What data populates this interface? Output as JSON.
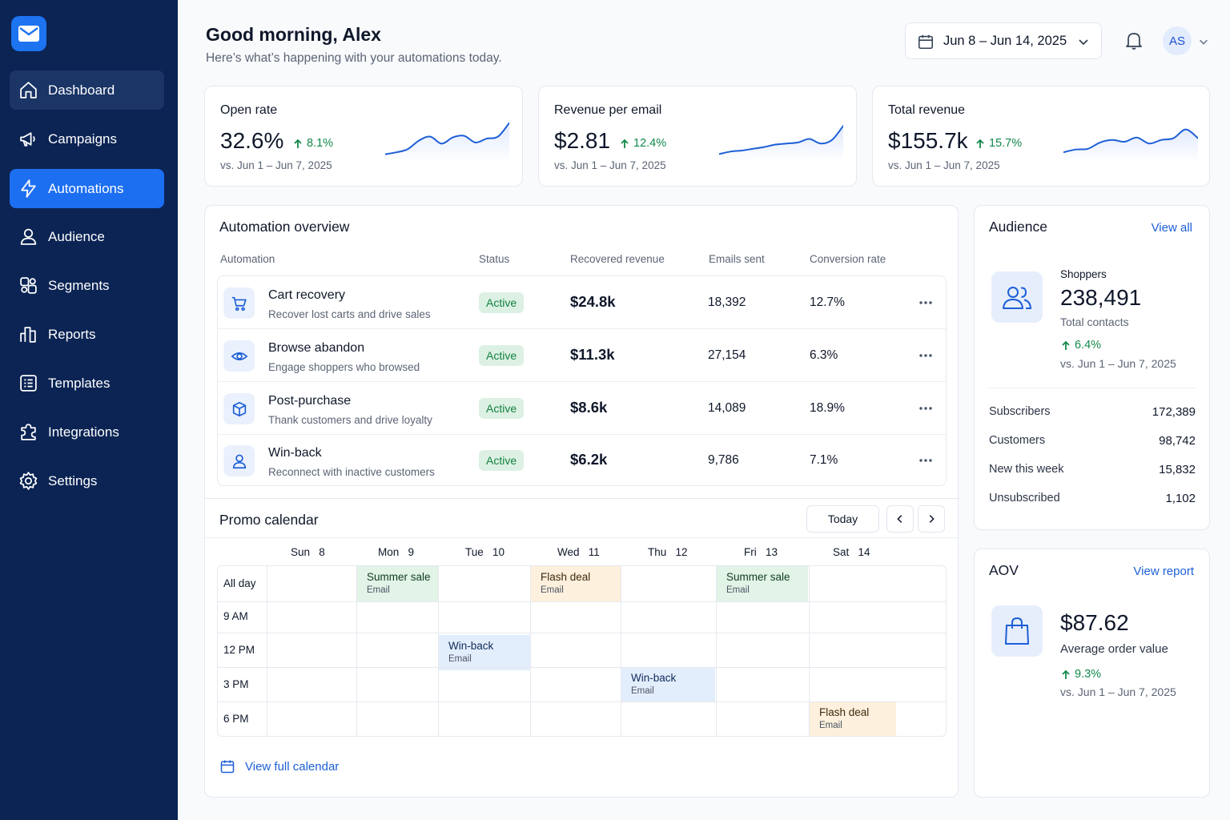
{
  "sidebar": {
    "logo_icon": "mail-icon",
    "items": [
      {
        "label": "Dashboard",
        "icon": "home-icon"
      },
      {
        "label": "Campaigns",
        "icon": "megaphone-icon"
      },
      {
        "label": "Automations",
        "icon": "lightning-icon"
      },
      {
        "label": "Audience",
        "icon": "user-icon"
      },
      {
        "label": "Segments",
        "icon": "segments-icon"
      },
      {
        "label": "Reports",
        "icon": "bar-chart-icon"
      },
      {
        "label": "Templates",
        "icon": "template-icon"
      },
      {
        "label": "Integrations",
        "icon": "puzzle-icon"
      },
      {
        "label": "Settings",
        "icon": "gear-icon"
      }
    ],
    "active": "Automations"
  },
  "header": {
    "greeting": "Good morning, Alex",
    "subtitle": "Here’s what’s happening with your automations today.",
    "date_range": "Jun 8 – Jun 14, 2025",
    "avatar_initials": "AS"
  },
  "metrics": [
    {
      "title": "Open rate",
      "value": "32.6%",
      "delta": "8.1%",
      "compare": "vs. Jun 1 – Jun 7, 2025",
      "trend": [
        0.15,
        0.2,
        0.28,
        0.5,
        0.6,
        0.42,
        0.58,
        0.62,
        0.45,
        0.55,
        0.6,
        0.95
      ]
    },
    {
      "title": "Revenue per email",
      "value": "$2.81",
      "delta": "12.4%",
      "compare": "vs. Jun 1 – Jun 7, 2025",
      "trend": [
        0.15,
        0.22,
        0.25,
        0.3,
        0.35,
        0.42,
        0.45,
        0.48,
        0.58,
        0.45,
        0.55,
        0.95
      ]
    },
    {
      "title": "Total revenue",
      "value": "$155.7k",
      "delta": "15.7%",
      "compare": "vs. Jun 1 – Jun 7, 2025",
      "trend": [
        0.2,
        0.28,
        0.3,
        0.48,
        0.55,
        0.5,
        0.62,
        0.45,
        0.55,
        0.6,
        0.85,
        0.6
      ]
    }
  ],
  "automation_overview": {
    "title": "Automation overview",
    "columns": [
      "Automation",
      "Status",
      "Recovered revenue",
      "Emails sent",
      "Conversion rate"
    ],
    "rows": [
      {
        "name": "Cart recovery",
        "desc": "Recover lost carts and drive sales",
        "status": "Active",
        "revenue": "$24.8k",
        "sent": "18,392",
        "conversion": "12.7%",
        "icon": "cart-icon"
      },
      {
        "name": "Browse abandon",
        "desc": "Engage shoppers who browsed",
        "status": "Active",
        "revenue": "$11.3k",
        "sent": "27,154",
        "conversion": "6.3%",
        "icon": "eye-icon"
      },
      {
        "name": "Post-purchase",
        "desc": "Thank customers and drive loyalty",
        "status": "Active",
        "revenue": "$8.6k",
        "sent": "14,089",
        "conversion": "18.9%",
        "icon": "box-icon"
      },
      {
        "name": "Win-back",
        "desc": "Reconnect with inactive customers",
        "status": "Active",
        "revenue": "$6.2k",
        "sent": "9,786",
        "conversion": "7.1%",
        "icon": "user-icon"
      }
    ]
  },
  "promo_calendar": {
    "title": "Promo calendar",
    "today_label": "Today",
    "days": [
      {
        "name": "Sun",
        "num": "8"
      },
      {
        "name": "Mon",
        "num": "9"
      },
      {
        "name": "Tue",
        "num": "10"
      },
      {
        "name": "Wed",
        "num": "11"
      },
      {
        "name": "Thu",
        "num": "12"
      },
      {
        "name": "Fri",
        "num": "13"
      },
      {
        "name": "Sat",
        "num": "14"
      }
    ],
    "times": [
      "All day",
      "9 AM",
      "12 PM",
      "3 PM",
      "6 PM"
    ],
    "events": [
      {
        "title": "Summer sale",
        "type": "Email"
      },
      {
        "title": "Flash deal",
        "type": "Email"
      },
      {
        "title": "Summer sale",
        "type": "Email"
      },
      {
        "title": "Win-back",
        "type": "Email"
      },
      {
        "title": "Win-back",
        "type": "Email"
      },
      {
        "title": "Flash deal",
        "type": "Email"
      }
    ],
    "view_full": "View full calendar"
  },
  "audience": {
    "title": "Audience",
    "view_all": "View all",
    "label": "Shoppers",
    "value": "238,491",
    "sub": "Total contacts",
    "delta": "6.4%",
    "compare": "vs. Jun 1 – Jun 7, 2025",
    "stats": [
      {
        "label": "Subscribers",
        "value": "172,389"
      },
      {
        "label": "Customers",
        "value": "98,742"
      },
      {
        "label": "New this week",
        "value": "15,832"
      },
      {
        "label": "Unsubscribed",
        "value": "1,102"
      }
    ]
  },
  "aov": {
    "title": "AOV",
    "view_report": "View report",
    "value": "$87.62",
    "sub": "Average order value",
    "delta": "9.3%",
    "compare": "vs. Jun 1 – Jun 7, 2025"
  },
  "colors": {
    "sidebar_bg": "#0b2454",
    "accent": "#1d6ff2",
    "positive": "#12894a",
    "event_green": "#e2f3e7",
    "event_orange": "#fdf0dc",
    "event_blue": "#e3eefc"
  }
}
